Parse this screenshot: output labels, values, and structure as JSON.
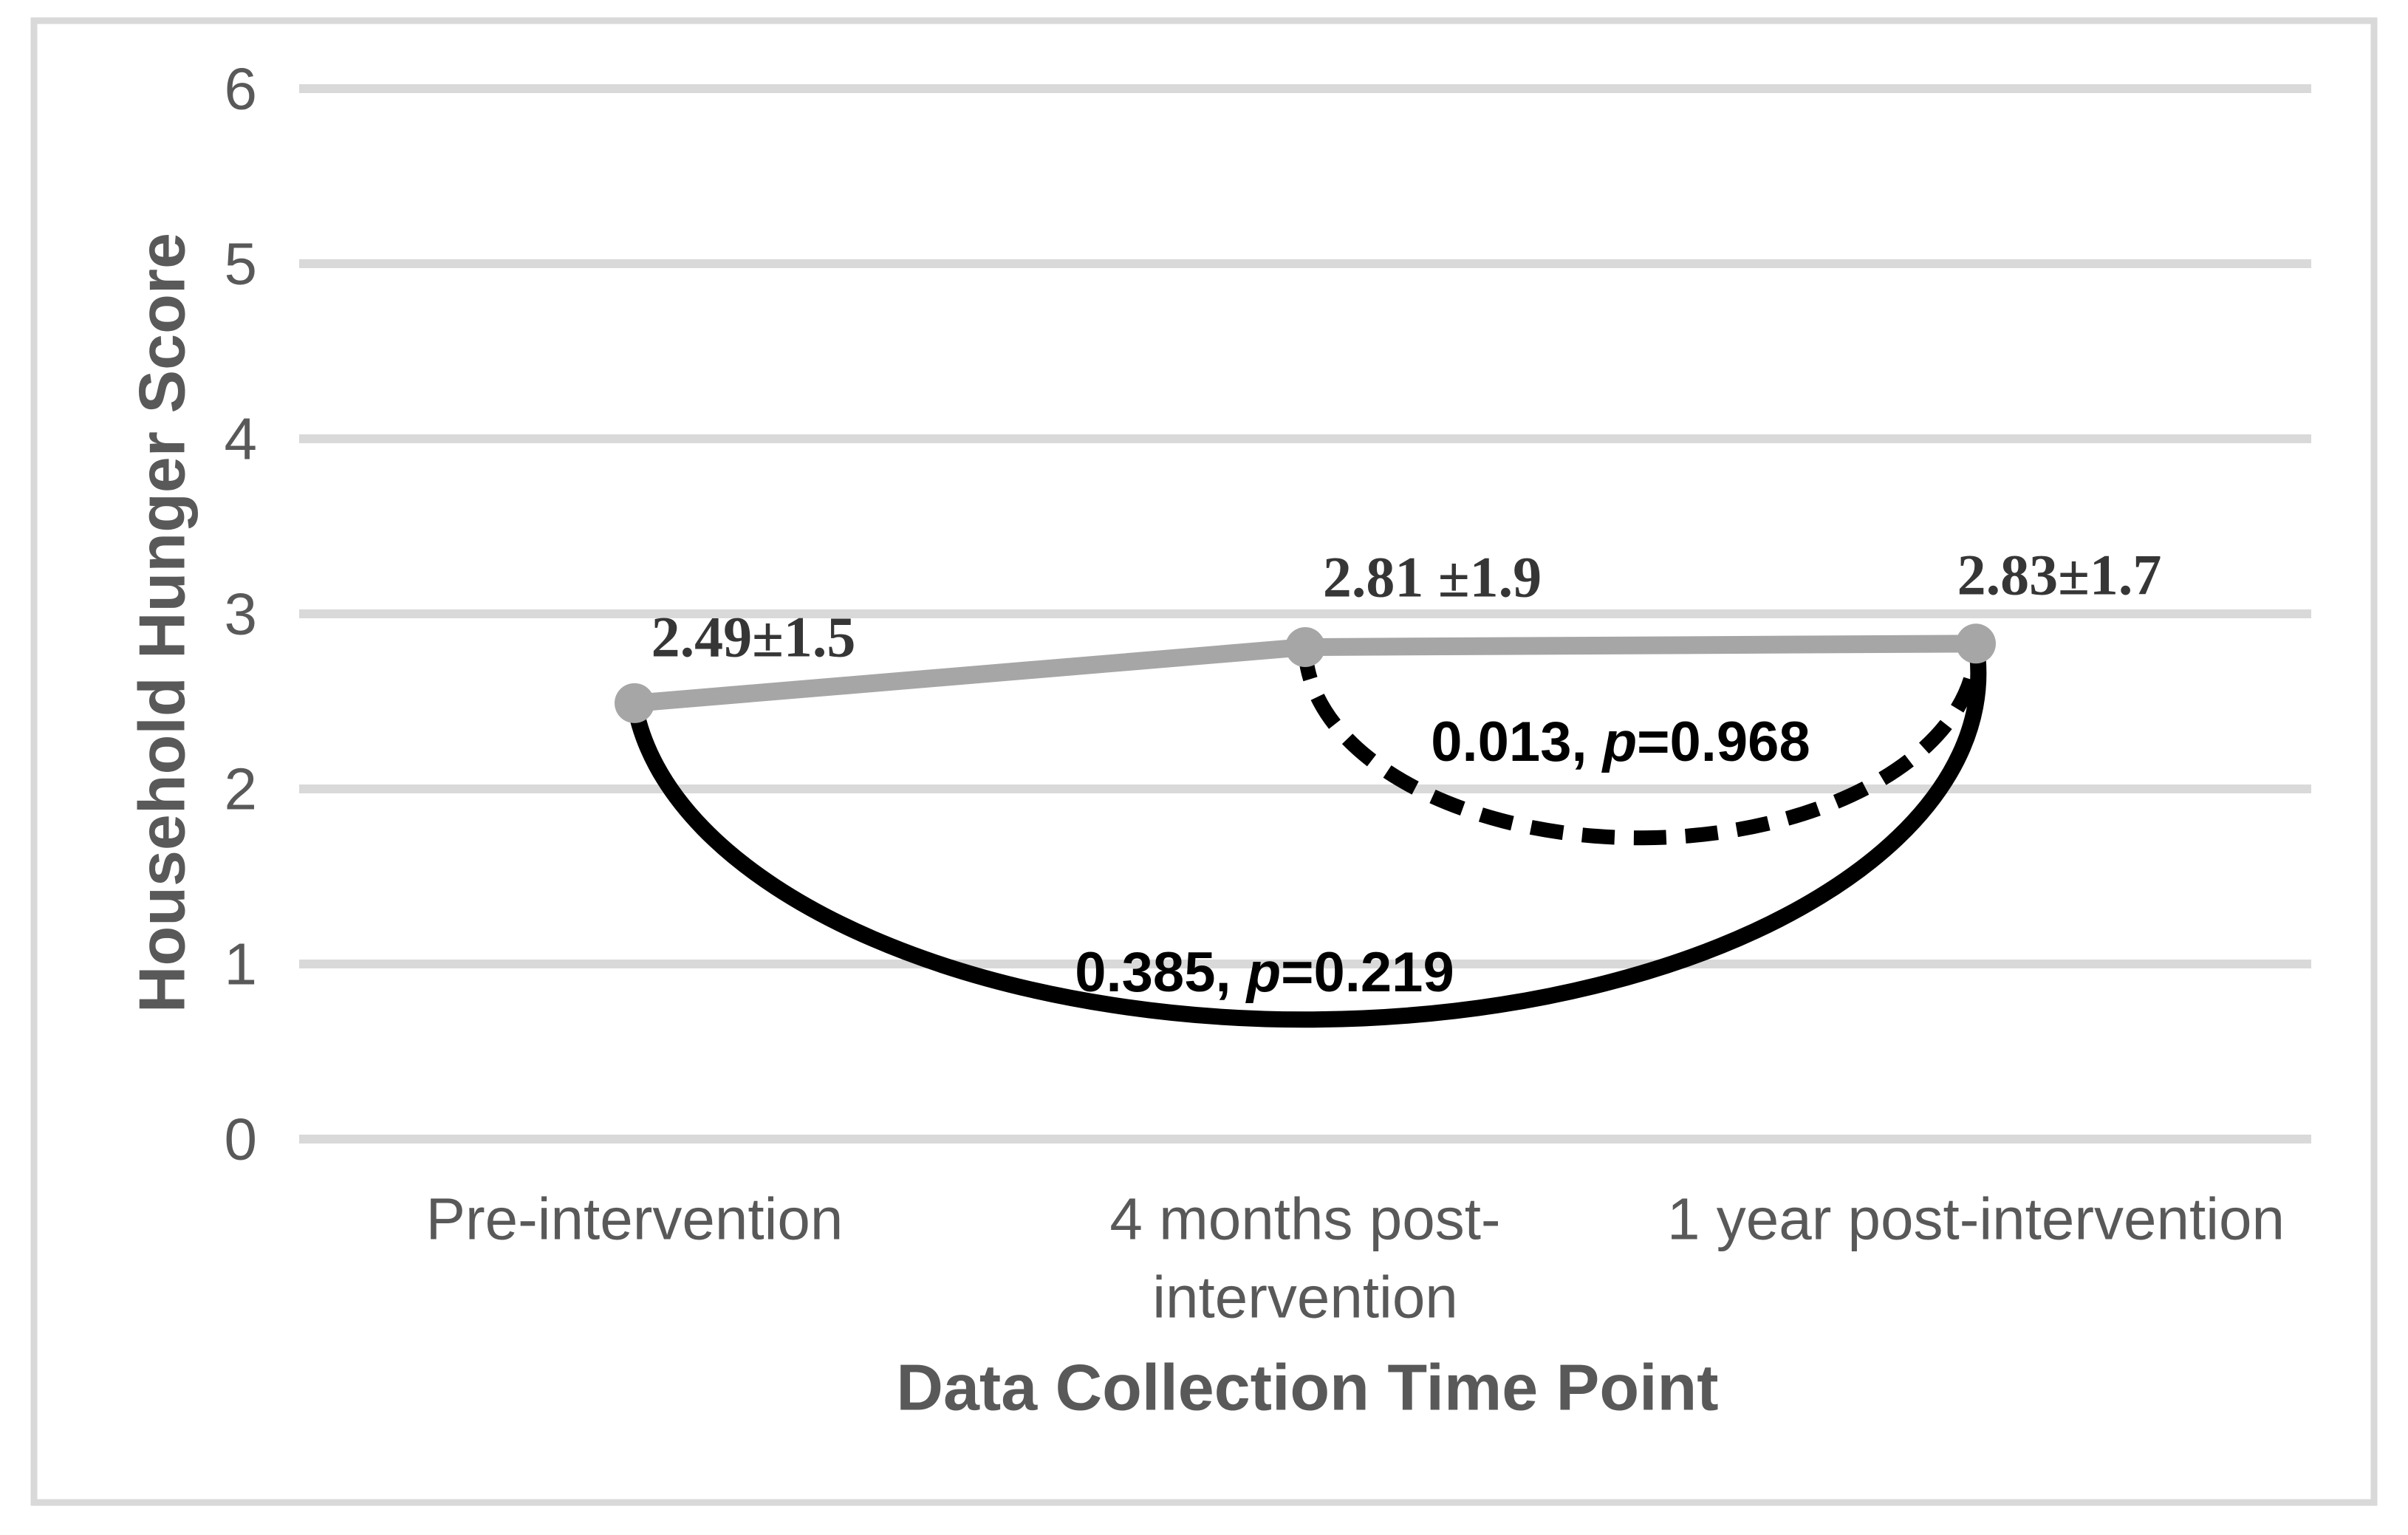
{
  "chart_data": {
    "type": "line",
    "title": "",
    "xlabel": "Data Collection Time Point",
    "ylabel": "Household Hunger Score",
    "categories": [
      "Pre-intervention",
      "4 months post-intervention",
      "1 year post-intervention"
    ],
    "category_display_lines": [
      [
        "Pre-intervention"
      ],
      [
        "4 months post-",
        "intervention"
      ],
      [
        "1 year post-intervention"
      ]
    ],
    "series": [
      {
        "values": [
          2.49,
          2.81,
          2.83
        ],
        "point_labels": [
          "2.49±1.5",
          "2.81 ±1.9",
          "2.83±1.7"
        ],
        "color": "#a6a6a6"
      }
    ],
    "ylim": [
      0,
      6
    ],
    "yticks": [
      0,
      1,
      2,
      3,
      4,
      5,
      6
    ],
    "grid": "horizontal-only",
    "legend": "none",
    "comparisons": [
      {
        "from": "Pre-intervention",
        "to": "1 year post-intervention",
        "diff": "0.385",
        "p_label": "p",
        "p_value": "0.219",
        "line_style": "solid",
        "dip_value": 0.69
      },
      {
        "from": "4 months post-intervention",
        "to": "1 year post-intervention",
        "diff": "0.013",
        "p_label": "p",
        "p_value": "0.968",
        "line_style": "dashed",
        "dip_value": 1.72
      }
    ],
    "colors": {
      "series": "#a6a6a6",
      "gridline": "#d9d9d9",
      "border": "#d9d9d9",
      "axis_text": "#595959",
      "data_label": "#363636",
      "annotation": "#000000"
    }
  }
}
